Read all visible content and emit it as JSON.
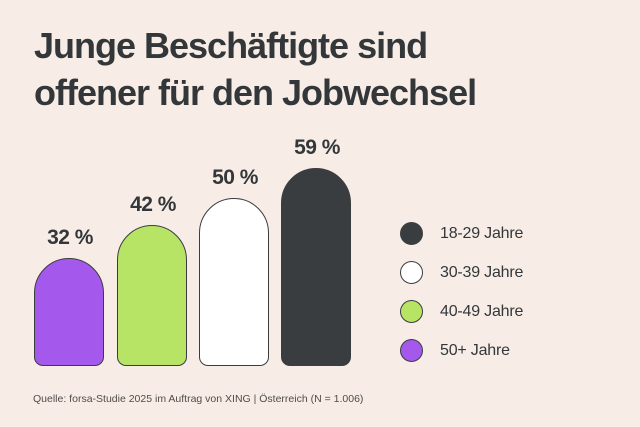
{
  "page": {
    "background_color": "#f7ede6",
    "text_color": "#33373a"
  },
  "title": {
    "line1": "Junge Beschäftigte sind",
    "line2": "offener für den Jobwechsel"
  },
  "source": "Quelle: forsa-Studie 2025 im Auftrag von XING | Österreich (N = 1.006)",
  "chart_data": {
    "type": "bar",
    "title": "Junge Beschäftigte sind offener für den Jobwechsel",
    "categories": [
      "50+ Jahre",
      "40-49 Jahre",
      "30-39 Jahre",
      "18-29 Jahre"
    ],
    "values": [
      32,
      42,
      50,
      59
    ],
    "unit": "%",
    "ylim": [
      0,
      65
    ],
    "grid": false,
    "axes_visible": false,
    "legend_position": "right",
    "bar_shape": "rounded-dome-top",
    "bars": [
      {
        "category": "50+ Jahre",
        "value": 32,
        "label": "32 %",
        "color": "#a558ec"
      },
      {
        "category": "40-49 Jahre",
        "value": 42,
        "label": "42 %",
        "color": "#b7e465"
      },
      {
        "category": "30-39 Jahre",
        "value": 50,
        "label": "50 %",
        "color": "#ffffff"
      },
      {
        "category": "18-29 Jahre",
        "value": 59,
        "label": "59 %",
        "color": "#3a3d40"
      }
    ],
    "legend": [
      {
        "label": "18-29 Jahre",
        "color": "#3a3d40"
      },
      {
        "label": "30-39 Jahre",
        "color": "#ffffff"
      },
      {
        "label": "40-49 Jahre",
        "color": "#b7e465"
      },
      {
        "label": "50+ Jahre",
        "color": "#a558ec"
      }
    ]
  }
}
